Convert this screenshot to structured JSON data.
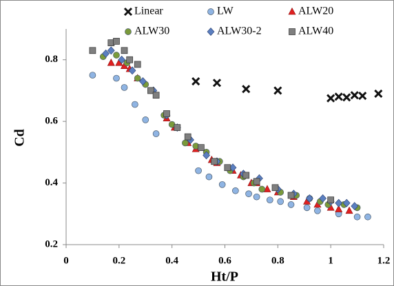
{
  "chart_data": {
    "type": "scatter",
    "xlabel": "Ht/P",
    "ylabel": "Cd",
    "xlim": [
      0,
      1.2
    ],
    "xticks": [
      0,
      0.2,
      0.4,
      0.6,
      0.8,
      1,
      1.2
    ],
    "ylim": [
      0.2,
      0.9
    ],
    "yticks": [
      0.2,
      0.4,
      0.6,
      0.8
    ],
    "legend": "top",
    "series": [
      {
        "name": "Linear",
        "marker": "x",
        "color": "#111111",
        "x": [
          0.49,
          0.57,
          0.68,
          0.8,
          1.0,
          1.03,
          1.06,
          1.09,
          1.12,
          1.18
        ],
        "values": [
          0.73,
          0.725,
          0.705,
          0.7,
          0.675,
          0.68,
          0.678,
          0.685,
          0.683,
          0.69
        ]
      },
      {
        "name": "LW",
        "marker": "circle",
        "color": "#8fb4e3",
        "x": [
          0.1,
          0.19,
          0.22,
          0.26,
          0.3,
          0.34,
          0.5,
          0.54,
          0.59,
          0.64,
          0.69,
          0.72,
          0.77,
          0.81,
          0.85,
          0.91,
          0.95,
          1.03,
          1.1,
          1.14
        ],
        "values": [
          0.75,
          0.74,
          0.71,
          0.655,
          0.605,
          0.56,
          0.44,
          0.42,
          0.395,
          0.375,
          0.365,
          0.355,
          0.345,
          0.34,
          0.33,
          0.32,
          0.31,
          0.3,
          0.29,
          0.29
        ]
      },
      {
        "name": "ALW20",
        "marker": "triangle",
        "color": "#e02020",
        "x": [
          0.17,
          0.2,
          0.22,
          0.24,
          0.27,
          0.38,
          0.41,
          0.46,
          0.49,
          0.55,
          0.57,
          0.63,
          0.66,
          0.7,
          0.72,
          0.76,
          0.8,
          0.86,
          0.91,
          0.95,
          1.0,
          1.03,
          1.07
        ],
        "values": [
          0.79,
          0.79,
          0.78,
          0.77,
          0.74,
          0.61,
          0.58,
          0.53,
          0.51,
          0.475,
          0.465,
          0.44,
          0.425,
          0.4,
          0.4,
          0.38,
          0.37,
          0.355,
          0.34,
          0.33,
          0.32,
          0.315,
          0.31
        ]
      },
      {
        "name": "ALW30",
        "marker": "circle",
        "color": "#7a9a3a",
        "x": [
          0.14,
          0.19,
          0.23,
          0.27,
          0.3,
          0.32,
          0.37,
          0.4,
          0.45,
          0.49,
          0.53,
          0.58,
          0.62,
          0.67,
          0.71,
          0.74,
          0.81,
          0.87,
          0.92,
          0.96,
          0.99,
          1.05,
          1.1
        ],
        "values": [
          0.81,
          0.815,
          0.79,
          0.74,
          0.72,
          0.7,
          0.62,
          0.59,
          0.53,
          0.52,
          0.5,
          0.47,
          0.44,
          0.42,
          0.4,
          0.38,
          0.37,
          0.36,
          0.35,
          0.34,
          0.33,
          0.33,
          0.32
        ]
      },
      {
        "name": "ALW30-2",
        "marker": "diamond",
        "color": "#5b7fc0",
        "x": [
          0.15,
          0.17,
          0.21,
          0.25,
          0.29,
          0.33,
          0.38,
          0.42,
          0.47,
          0.53,
          0.57,
          0.63,
          0.67,
          0.73,
          0.8,
          0.86,
          0.92,
          0.97,
          1.0,
          1.03,
          1.06,
          1.09
        ],
        "values": [
          0.82,
          0.83,
          0.8,
          0.765,
          0.73,
          0.7,
          0.62,
          0.58,
          0.54,
          0.49,
          0.47,
          0.45,
          0.43,
          0.415,
          0.38,
          0.365,
          0.35,
          0.35,
          0.34,
          0.335,
          0.335,
          0.325
        ]
      },
      {
        "name": "ALW40",
        "marker": "square",
        "color": "#7f7f7f",
        "x": [
          0.1,
          0.17,
          0.19,
          0.22,
          0.24,
          0.27,
          0.32,
          0.34,
          0.38,
          0.42,
          0.46,
          0.51,
          0.56,
          0.61,
          0.68,
          0.72,
          0.79,
          0.85,
          1.0
        ],
        "values": [
          0.83,
          0.855,
          0.86,
          0.83,
          0.8,
          0.785,
          0.7,
          0.685,
          0.625,
          0.58,
          0.55,
          0.515,
          0.47,
          0.45,
          0.425,
          0.405,
          0.385,
          0.36,
          0.345
        ]
      }
    ]
  }
}
